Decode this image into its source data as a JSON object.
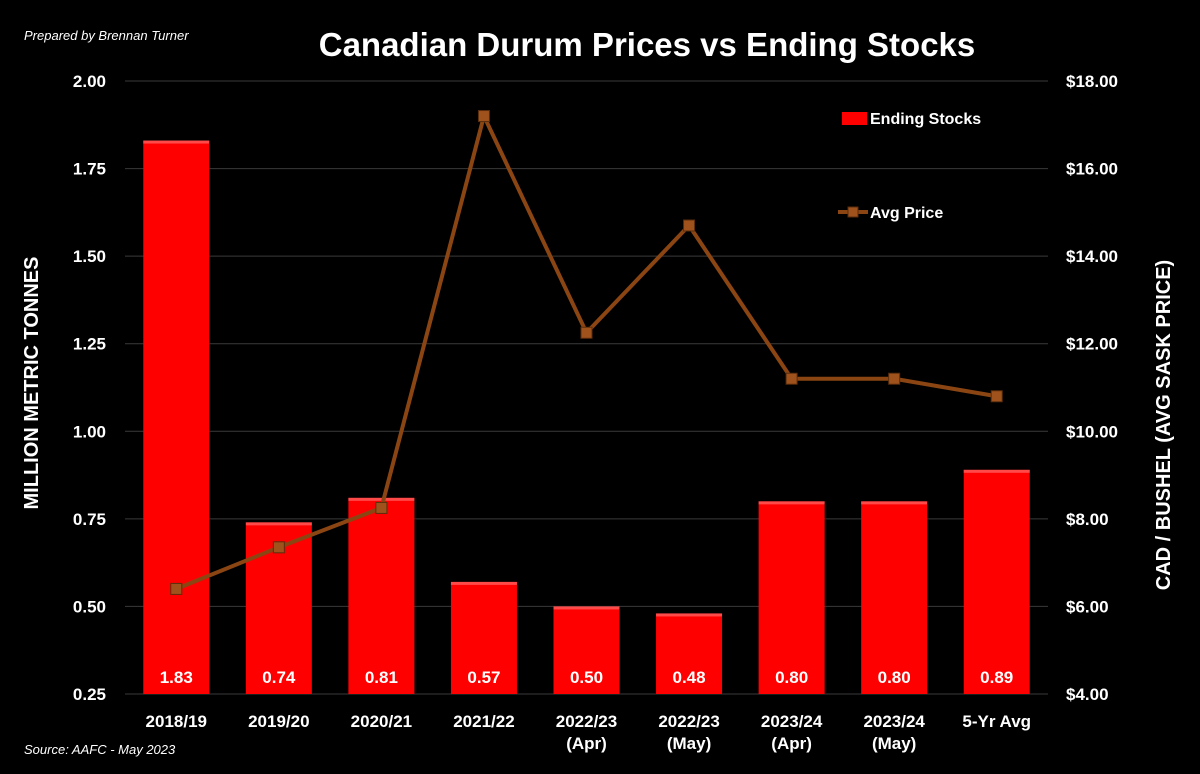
{
  "credit": "Prepared by Brennan Turner",
  "source": "Source: AAFC - May 2023",
  "colors": {
    "background": "#000000",
    "bar": "#ff0000",
    "line": "#8B4513",
    "grid": "#3a3a3a",
    "text": "#ffffff"
  },
  "chart_data": {
    "type": "bar",
    "title": "Canadian Durum Prices vs Ending Stocks",
    "categories": [
      [
        "2018/19"
      ],
      [
        "2019/20"
      ],
      [
        "2020/21"
      ],
      [
        "2021/22"
      ],
      [
        "2022/23",
        "(Apr)"
      ],
      [
        "2022/23",
        "(May)"
      ],
      [
        "2023/24",
        "(Apr)"
      ],
      [
        "2023/24",
        "(May)"
      ],
      [
        "5-Yr Avg"
      ]
    ],
    "ylabel": "MILLION METRIC TONNES",
    "ylabel_right": "CAD / BUSHEL (AVG SASK PRICE)",
    "ylim": [
      0.25,
      2.0
    ],
    "yticks": [
      "0.25",
      "0.50",
      "0.75",
      "1.00",
      "1.25",
      "1.50",
      "1.75",
      "2.00"
    ],
    "ylim_right": [
      4,
      18
    ],
    "yticks_right": [
      "$4.00",
      "$6.00",
      "$8.00",
      "$10.00",
      "$12.00",
      "$14.00",
      "$16.00",
      "$18.00"
    ],
    "grid": true,
    "legend_position": "top-right",
    "series": [
      {
        "name": "Ending Stocks",
        "type": "bar",
        "axis": "left",
        "values": [
          1.83,
          0.74,
          0.81,
          0.57,
          0.5,
          0.48,
          0.8,
          0.8,
          0.89
        ],
        "labels": [
          "1.83",
          "0.74",
          "0.81",
          "0.57",
          "0.50",
          "0.48",
          "0.80",
          "0.80",
          "0.89"
        ]
      },
      {
        "name": "Avg Price",
        "type": "line",
        "axis": "right",
        "values": [
          6.4,
          7.35,
          8.25,
          17.2,
          12.25,
          14.7,
          11.2,
          11.2,
          10.8
        ]
      }
    ]
  }
}
